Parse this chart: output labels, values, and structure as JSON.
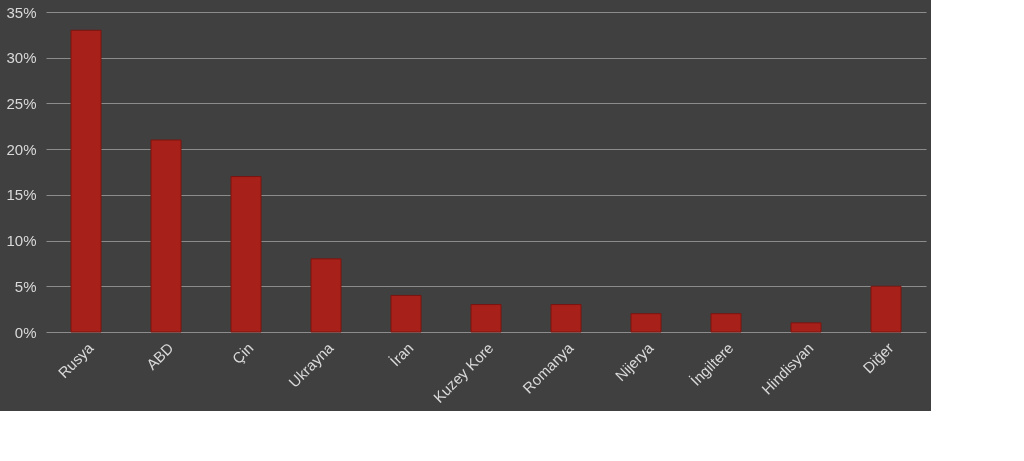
{
  "chart_data": {
    "type": "bar",
    "categories": [
      "Rusya",
      "ABD",
      "Çin",
      "Ukrayna",
      "İran",
      "Kuzey Kore",
      "Romanya",
      "Nijerya",
      "İngiltere",
      "Hindisyan",
      "Diğer"
    ],
    "values": [
      33,
      21,
      17,
      8,
      4,
      3,
      3,
      2,
      2,
      1,
      5
    ],
    "color": "#a8201a",
    "ylim": [
      0,
      35
    ],
    "yticks": [
      {
        "value": 0,
        "label": "0%"
      },
      {
        "value": 5,
        "label": "5%"
      },
      {
        "value": 10,
        "label": "10%"
      },
      {
        "value": 15,
        "label": "15%"
      },
      {
        "value": 20,
        "label": "20%"
      },
      {
        "value": 25,
        "label": "25%"
      },
      {
        "value": 30,
        "label": "30%"
      },
      {
        "value": 35,
        "label": "35%"
      }
    ],
    "grid": "y"
  }
}
